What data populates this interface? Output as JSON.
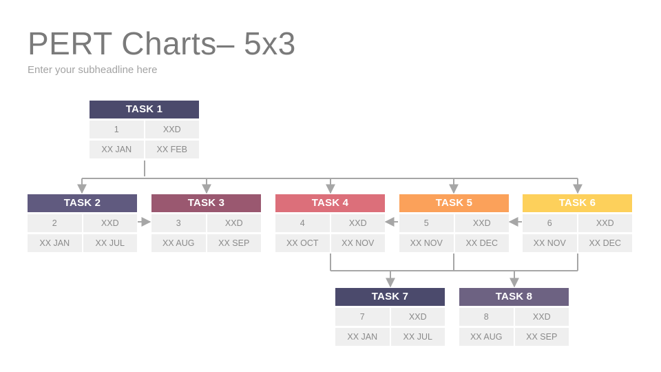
{
  "title": "PERT Charts– 5x3",
  "subtitle": "Enter your subheadline here",
  "colors": {
    "connector": "#a6a6a6",
    "cell_bg": "#efefef",
    "cell_text": "#8a8a8a"
  },
  "tasks": [
    {
      "name": "TASK 1",
      "number": "1",
      "duration": "XXD",
      "start": "XX JAN",
      "end": "XX FEB",
      "color": "#4b4a6c"
    },
    {
      "name": "TASK 2",
      "number": "2",
      "duration": "XXD",
      "start": "XX JAN",
      "end": "XX JUL",
      "color": "#605a7f"
    },
    {
      "name": "TASK 3",
      "number": "3",
      "duration": "XXD",
      "start": "XX AUG",
      "end": "XX SEP",
      "color": "#9a5870"
    },
    {
      "name": "TASK 4",
      "number": "4",
      "duration": "XXD",
      "start": "XX OCT",
      "end": "XX NOV",
      "color": "#dc6f7a"
    },
    {
      "name": "TASK 5",
      "number": "5",
      "duration": "XXD",
      "start": "XX NOV",
      "end": "XX DEC",
      "color": "#fba15a"
    },
    {
      "name": "TASK 6",
      "number": "6",
      "duration": "XXD",
      "start": "XX NOV",
      "end": "XX DEC",
      "color": "#fdd05b"
    },
    {
      "name": "TASK 7",
      "number": "7",
      "duration": "XXD",
      "start": "XX JAN",
      "end": "XX JUL",
      "color": "#4b4a6c"
    },
    {
      "name": "TASK 8",
      "number": "8",
      "duration": "XXD",
      "start": "XX AUG",
      "end": "XX SEP",
      "color": "#6d6282"
    }
  ]
}
